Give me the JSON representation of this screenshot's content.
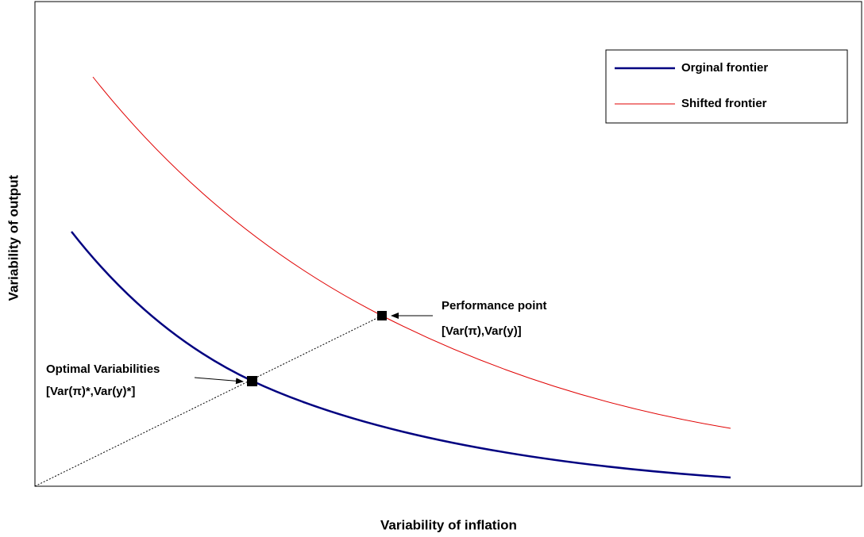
{
  "axes": {
    "x_label": "Variability of inflation",
    "y_label": "Variability of output"
  },
  "legend": {
    "items": [
      {
        "label": "Orginal frontier"
      },
      {
        "label": "Shifted frontier"
      }
    ]
  },
  "annotations": [
    {
      "lines": [
        "Performance point",
        "[Var(π),Var(y)]"
      ]
    },
    {
      "lines": [
        "Optimal Variabilities",
        "[Var(π)*,Var(y)*]"
      ]
    }
  ]
}
